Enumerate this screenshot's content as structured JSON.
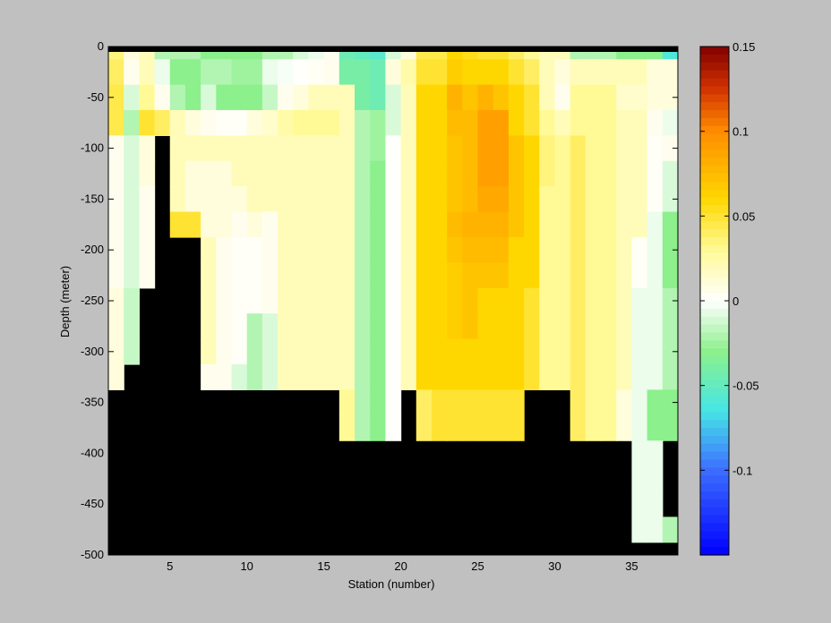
{
  "chart_data": {
    "type": "heatmap",
    "title": "",
    "xlabel": "Station (number)",
    "ylabel": "Depth (meter)",
    "xlim": [
      1,
      38
    ],
    "ylim": [
      -500,
      0
    ],
    "xticks": [
      5,
      10,
      15,
      20,
      25,
      30,
      35
    ],
    "yticks": [
      0,
      -50,
      -100,
      -150,
      -200,
      -250,
      -300,
      -350,
      -400,
      -450,
      -500
    ],
    "colorbar": {
      "range": [
        -0.15,
        0.15
      ],
      "ticks": [
        0.15,
        0.1,
        0.05,
        0,
        -0.05,
        -0.1
      ],
      "tick_labels": [
        "0.15",
        "0.1",
        "0.05",
        "0",
        "-0.05",
        "-0.1"
      ]
    },
    "mask_color": "#000000",
    "grid": false,
    "stations": [
      1,
      2,
      3,
      4,
      5,
      6,
      7,
      8,
      9,
      10,
      11,
      12,
      13,
      14,
      15,
      16,
      17,
      18,
      19,
      20,
      21,
      22,
      23,
      24,
      25,
      26,
      27,
      28,
      29,
      30,
      31,
      32,
      33,
      34,
      35,
      36,
      37
    ],
    "depths": [
      -5,
      -25,
      -50,
      -75,
      -100,
      -125,
      -150,
      -175,
      -200,
      -225,
      -250,
      -275,
      -300,
      -325,
      -350,
      -375,
      -400,
      -425,
      -450,
      -475,
      -500
    ],
    "values_note": "rows = depths (0 to -500 m in 25 m bands), columns = stations; null = no data (black)",
    "values": [
      [
        0.035,
        0.01,
        0.02,
        -0.02,
        -0.02,
        -0.02,
        -0.03,
        -0.03,
        -0.03,
        -0.03,
        -0.02,
        -0.02,
        -0.01,
        -0.005,
        0.005,
        -0.045,
        -0.05,
        -0.055,
        -0.01,
        0.01,
        0.045,
        0.045,
        0.06,
        0.055,
        0.05,
        0.05,
        0.04,
        0.03,
        0.02,
        0.02,
        -0.02,
        -0.02,
        -0.02,
        -0.03,
        -0.03,
        -0.03,
        -0.06
      ],
      [
        0.04,
        0.005,
        0.02,
        -0.005,
        -0.03,
        -0.03,
        -0.02,
        -0.02,
        -0.025,
        -0.025,
        -0.005,
        -0.002,
        0.001,
        0.003,
        0.005,
        -0.04,
        -0.04,
        -0.045,
        0.01,
        0.025,
        0.05,
        0.05,
        0.065,
        0.06,
        0.06,
        0.06,
        0.05,
        0.04,
        0.02,
        0.01,
        0.02,
        0.02,
        0.02,
        0.02,
        0.02,
        0.01,
        0.01
      ],
      [
        0.045,
        -0.01,
        0.03,
        0.005,
        -0.02,
        -0.03,
        -0.01,
        -0.03,
        -0.03,
        -0.03,
        -0.015,
        0.005,
        0.01,
        0.02,
        0.02,
        0.02,
        -0.04,
        -0.045,
        -0.01,
        0.02,
        0.06,
        0.06,
        0.08,
        0.07,
        0.08,
        0.07,
        0.06,
        0.05,
        0.02,
        0.005,
        0.03,
        0.03,
        0.03,
        0.015,
        0.015,
        0.01,
        0.01
      ],
      [
        0.045,
        -0.02,
        0.05,
        0.04,
        0.02,
        0.01,
        0.005,
        0.002,
        0.002,
        0.01,
        0.015,
        0.025,
        0.03,
        0.03,
        0.03,
        0.02,
        -0.02,
        -0.025,
        -0.01,
        0.02,
        0.06,
        0.06,
        0.075,
        0.075,
        0.09,
        0.09,
        0.06,
        0.05,
        0.03,
        0.02,
        0.03,
        0.03,
        0.03,
        0.02,
        0.02,
        0.005,
        -0.005
      ],
      [
        0.005,
        -0.01,
        0.01,
        null,
        0.02,
        0.02,
        0.02,
        0.02,
        0.02,
        0.02,
        0.02,
        0.02,
        0.02,
        0.02,
        0.02,
        0.02,
        -0.02,
        -0.025,
        0.001,
        0.02,
        0.06,
        0.06,
        0.07,
        0.075,
        0.09,
        0.09,
        0.07,
        0.06,
        0.035,
        0.03,
        0.04,
        0.03,
        0.03,
        0.02,
        0.02,
        0.002,
        0.005
      ],
      [
        0.005,
        -0.01,
        0.01,
        null,
        0.02,
        0.01,
        0.01,
        0.01,
        0.02,
        0.02,
        0.02,
        0.02,
        0.02,
        0.02,
        0.02,
        0.02,
        -0.02,
        -0.03,
        0.001,
        0.02,
        0.06,
        0.06,
        0.07,
        0.075,
        0.09,
        0.09,
        0.07,
        0.06,
        0.035,
        0.03,
        0.04,
        0.03,
        0.03,
        0.02,
        0.02,
        0.002,
        -0.01
      ],
      [
        0.005,
        -0.01,
        0.005,
        null,
        0.02,
        0.01,
        0.01,
        0.01,
        0.01,
        0.02,
        0.02,
        0.02,
        0.02,
        0.02,
        0.02,
        0.02,
        -0.02,
        -0.03,
        0.001,
        0.02,
        0.06,
        0.06,
        0.07,
        0.075,
        0.085,
        0.085,
        0.07,
        0.06,
        0.03,
        0.03,
        0.04,
        0.03,
        0.03,
        0.02,
        0.02,
        0.002,
        -0.01
      ],
      [
        0.005,
        -0.01,
        0.005,
        null,
        0.05,
        0.05,
        0.01,
        0.01,
        0.005,
        0.01,
        0.005,
        0.02,
        0.02,
        0.02,
        0.02,
        0.02,
        -0.02,
        -0.03,
        0.001,
        0.02,
        0.06,
        0.06,
        0.075,
        0.08,
        0.08,
        0.08,
        0.07,
        0.06,
        0.03,
        0.03,
        0.04,
        0.03,
        0.03,
        0.02,
        0.02,
        -0.005,
        -0.03
      ],
      [
        0.005,
        -0.01,
        0.005,
        null,
        null,
        null,
        0.02,
        0.005,
        0.002,
        0.002,
        0.005,
        0.02,
        0.02,
        0.02,
        0.02,
        0.02,
        -0.02,
        -0.03,
        0.001,
        0.02,
        0.06,
        0.06,
        0.07,
        0.075,
        0.075,
        0.075,
        0.06,
        0.06,
        0.03,
        0.03,
        0.04,
        0.03,
        0.03,
        0.02,
        0.002,
        -0.005,
        -0.03
      ],
      [
        0.005,
        -0.01,
        0.005,
        null,
        null,
        null,
        0.02,
        0.005,
        0.002,
        0.002,
        0.005,
        0.02,
        0.02,
        0.02,
        0.02,
        0.02,
        -0.02,
        -0.03,
        0.001,
        0.02,
        0.06,
        0.06,
        0.065,
        0.07,
        0.07,
        0.07,
        0.06,
        0.06,
        0.03,
        0.03,
        0.04,
        0.03,
        0.03,
        0.02,
        0.002,
        -0.005,
        -0.03
      ],
      [
        0.01,
        -0.015,
        null,
        null,
        null,
        null,
        0.02,
        0.005,
        0.002,
        0.002,
        0.005,
        0.02,
        0.02,
        0.02,
        0.02,
        0.02,
        -0.02,
        -0.03,
        0.001,
        0.02,
        0.06,
        0.06,
        0.065,
        0.07,
        0.06,
        0.06,
        0.06,
        0.05,
        0.03,
        0.03,
        0.04,
        0.03,
        0.03,
        0.02,
        -0.005,
        -0.005,
        -0.02
      ],
      [
        0.01,
        -0.015,
        null,
        null,
        null,
        null,
        0.02,
        0.005,
        0.002,
        -0.02,
        -0.01,
        0.02,
        0.02,
        0.02,
        0.02,
        0.02,
        -0.02,
        -0.03,
        0.001,
        0.02,
        0.06,
        0.06,
        0.065,
        0.07,
        0.06,
        0.06,
        0.06,
        0.05,
        0.03,
        0.03,
        0.04,
        0.03,
        0.03,
        0.02,
        -0.005,
        -0.005,
        -0.02
      ],
      [
        0.01,
        -0.015,
        null,
        null,
        null,
        null,
        0.02,
        0.005,
        0.002,
        -0.02,
        -0.01,
        0.02,
        0.02,
        0.02,
        0.02,
        0.02,
        -0.02,
        -0.03,
        0.001,
        0.02,
        0.06,
        0.06,
        0.06,
        0.06,
        0.06,
        0.06,
        0.06,
        0.05,
        0.03,
        0.03,
        0.04,
        0.03,
        0.03,
        0.02,
        -0.005,
        -0.005,
        -0.02
      ],
      [
        0.01,
        null,
        null,
        null,
        null,
        null,
        0.005,
        0.005,
        -0.01,
        -0.02,
        -0.01,
        0.02,
        0.02,
        0.02,
        0.02,
        0.02,
        -0.02,
        -0.03,
        0.001,
        0.02,
        0.06,
        0.06,
        0.06,
        0.06,
        0.06,
        0.06,
        0.06,
        0.05,
        0.03,
        0.03,
        0.04,
        0.03,
        0.03,
        0.02,
        -0.005,
        -0.005,
        -0.02
      ],
      [
        null,
        null,
        null,
        null,
        null,
        null,
        null,
        null,
        null,
        null,
        null,
        null,
        null,
        null,
        null,
        0.03,
        -0.02,
        -0.03,
        0.001,
        null,
        0.04,
        0.05,
        0.05,
        0.05,
        0.05,
        0.05,
        0.05,
        null,
        null,
        null,
        0.04,
        0.03,
        0.03,
        0.01,
        -0.005,
        -0.03,
        -0.03
      ],
      [
        null,
        null,
        null,
        null,
        null,
        null,
        null,
        null,
        null,
        null,
        null,
        null,
        null,
        null,
        null,
        0.03,
        -0.02,
        -0.03,
        0.001,
        null,
        0.04,
        0.05,
        0.05,
        0.05,
        0.05,
        0.05,
        0.05,
        null,
        null,
        null,
        0.04,
        0.03,
        0.03,
        0.01,
        -0.005,
        -0.03,
        -0.03
      ],
      [
        null,
        null,
        null,
        null,
        null,
        null,
        null,
        null,
        null,
        null,
        null,
        null,
        null,
        null,
        null,
        null,
        null,
        null,
        null,
        null,
        null,
        null,
        null,
        null,
        null,
        null,
        null,
        null,
        null,
        null,
        null,
        null,
        null,
        null,
        -0.005,
        -0.005,
        null
      ],
      [
        null,
        null,
        null,
        null,
        null,
        null,
        null,
        null,
        null,
        null,
        null,
        null,
        null,
        null,
        null,
        null,
        null,
        null,
        null,
        null,
        null,
        null,
        null,
        null,
        null,
        null,
        null,
        null,
        null,
        null,
        null,
        null,
        null,
        null,
        -0.005,
        -0.005,
        null
      ],
      [
        null,
        null,
        null,
        null,
        null,
        null,
        null,
        null,
        null,
        null,
        null,
        null,
        null,
        null,
        null,
        null,
        null,
        null,
        null,
        null,
        null,
        null,
        null,
        null,
        null,
        null,
        null,
        null,
        null,
        null,
        null,
        null,
        null,
        null,
        -0.005,
        -0.005,
        null
      ],
      [
        null,
        null,
        null,
        null,
        null,
        null,
        null,
        null,
        null,
        null,
        null,
        null,
        null,
        null,
        null,
        null,
        null,
        null,
        null,
        null,
        null,
        null,
        null,
        null,
        null,
        null,
        null,
        null,
        null,
        null,
        null,
        null,
        null,
        null,
        -0.005,
        -0.005,
        -0.02
      ],
      [
        null,
        null,
        null,
        null,
        null,
        null,
        null,
        null,
        null,
        null,
        null,
        null,
        null,
        null,
        null,
        null,
        null,
        null,
        null,
        null,
        null,
        null,
        null,
        null,
        null,
        null,
        null,
        null,
        null,
        null,
        null,
        null,
        null,
        null,
        null,
        null,
        null
      ]
    ]
  }
}
